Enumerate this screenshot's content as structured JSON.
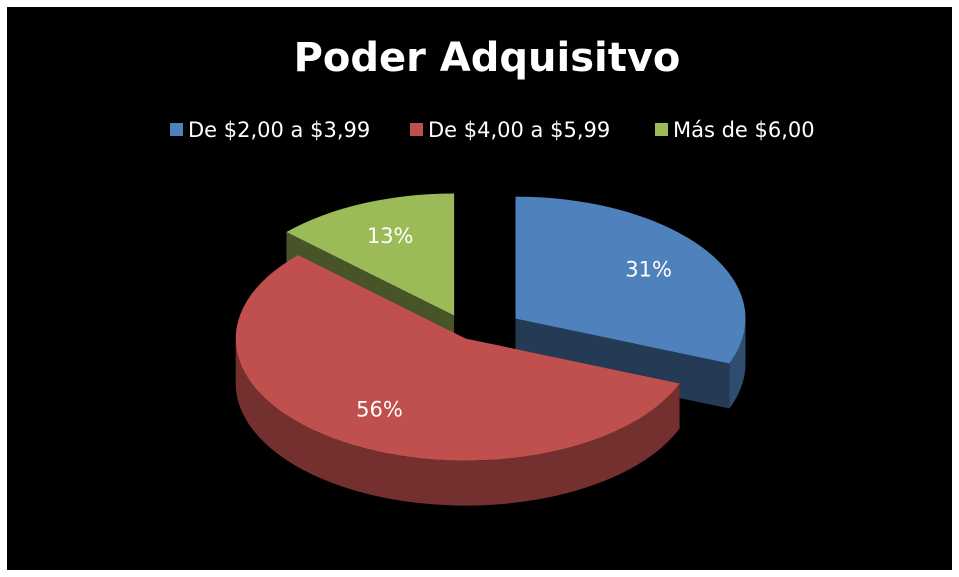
{
  "chart_data": {
    "type": "pie",
    "title": "Poder Adquisitvo",
    "categories": [
      "De $2,00 a $3,99",
      "De $4,00 a $5,99",
      "Más de $6,00"
    ],
    "values": [
      31,
      56,
      13
    ],
    "value_labels": [
      "31%",
      "56%",
      "13%"
    ],
    "colors": [
      "#4f81bd",
      "#c0504d",
      "#9bbb59"
    ],
    "legend": "top"
  }
}
